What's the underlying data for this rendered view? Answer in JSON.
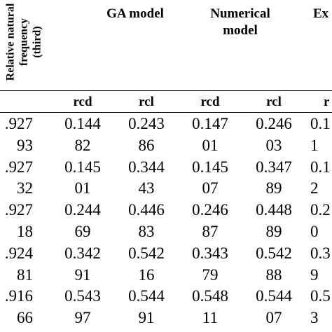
{
  "row_header": {
    "lines": [
      "Relative natural",
      "frequency",
      "(third)"
    ]
  },
  "groups": [
    {
      "lines": [
        "GA model"
      ]
    },
    {
      "lines": [
        "Numerical",
        "model"
      ]
    },
    {
      "lines": [
        "Ex"
      ]
    }
  ],
  "subheaders": [
    "rcd",
    "rcl",
    "rcd",
    "rcl",
    "r"
  ],
  "rows": [
    {
      "label": ".927",
      "cells": [
        "0.144",
        "0.243",
        "0.147",
        "0.246",
        "0.1"
      ]
    },
    {
      "label": "93",
      "cells": [
        "82",
        "86",
        "01",
        "03",
        "1"
      ]
    },
    {
      "label": ".927",
      "cells": [
        "0.145",
        "0.344",
        "0.145",
        "0.347",
        "0.1"
      ]
    },
    {
      "label": "32",
      "cells": [
        "01",
        "43",
        "07",
        "89",
        "2"
      ]
    },
    {
      "label": ".927",
      "cells": [
        "0.244",
        "0.446",
        "0.246",
        "0.448",
        "0.2"
      ]
    },
    {
      "label": "18",
      "cells": [
        "69",
        "83",
        "87",
        "89",
        "0"
      ]
    },
    {
      "label": ".924",
      "cells": [
        "0.342",
        "0.542",
        "0.343",
        "0.542",
        "0.3"
      ]
    },
    {
      "label": "81",
      "cells": [
        "91",
        "16",
        "79",
        "88",
        "9"
      ]
    },
    {
      "label": ".916",
      "cells": [
        "0.543",
        "0.544",
        "0.548",
        "0.544",
        "0.5"
      ]
    },
    {
      "label": "66",
      "cells": [
        "97",
        "91",
        "11",
        "07",
        "3"
      ]
    }
  ]
}
